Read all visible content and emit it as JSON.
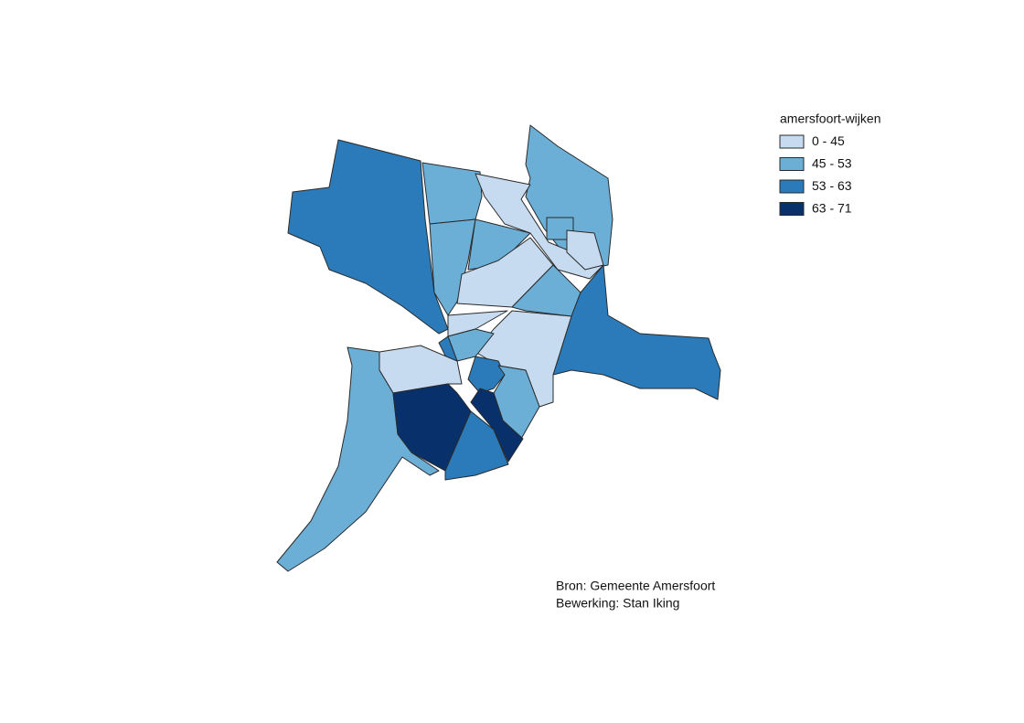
{
  "legend": {
    "title": "amersfoort-wijken",
    "classes": [
      {
        "label": "0 - 45",
        "color": "#c6dbef"
      },
      {
        "label": "45 - 53",
        "color": "#6baed6"
      },
      {
        "label": "53 - 63",
        "color": "#2b7bba"
      },
      {
        "label": "63 - 71",
        "color": "#08306b"
      }
    ]
  },
  "source": {
    "lines": [
      "Bron: Gemeente Amersfoort",
      "Bewerking: Stan Iking"
    ]
  }
}
